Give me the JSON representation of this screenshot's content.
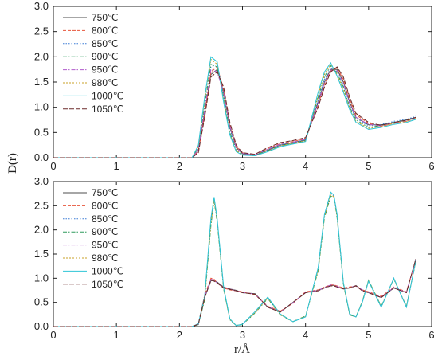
{
  "ylabel": "D(r)",
  "xlabel": "r/Å",
  "colors": [
    "#4d4d4d",
    "#e8543a",
    "#3a7bd5",
    "#2e9a5c",
    "#b15ccc",
    "#c9a227",
    "#2ec4d6",
    "#6b2a2a"
  ],
  "dashes": [
    "",
    "4,2",
    "1.5,2",
    "5,2,1.5,2",
    "5,2,1.5,2",
    "2,2",
    "",
    "6,2"
  ],
  "chart_data": [
    {
      "type": "line",
      "panel": "top",
      "xlim": [
        0,
        6
      ],
      "ylim": [
        0,
        3
      ],
      "xticks": [
        "0",
        "1",
        "2",
        "3",
        "4",
        "5",
        "6"
      ],
      "yticks": [
        "0.0",
        "0.5",
        "1.0",
        "1.5",
        "2.0",
        "2.5",
        "3.0"
      ],
      "legend": "top-left",
      "x": [
        0.0,
        2.2,
        2.3,
        2.4,
        2.5,
        2.6,
        2.7,
        2.8,
        2.9,
        3.0,
        3.2,
        3.4,
        3.6,
        3.8,
        4.0,
        4.2,
        4.3,
        4.4,
        4.5,
        4.6,
        4.7,
        4.8,
        5.0,
        5.2,
        5.4,
        5.6,
        5.75
      ],
      "series": [
        {
          "name": "750℃",
          "values": [
            0,
            0,
            0.15,
            0.9,
            1.65,
            1.75,
            1.3,
            0.6,
            0.2,
            0.08,
            0.05,
            0.15,
            0.25,
            0.3,
            0.35,
            1.1,
            1.5,
            1.75,
            1.75,
            1.5,
            1.1,
            0.8,
            0.65,
            0.65,
            0.7,
            0.75,
            0.8
          ]
        },
        {
          "name": "800℃",
          "values": [
            0,
            0,
            0.12,
            0.85,
            1.7,
            1.8,
            1.35,
            0.65,
            0.22,
            0.1,
            0.06,
            0.18,
            0.28,
            0.32,
            0.38,
            1.05,
            1.45,
            1.72,
            1.78,
            1.55,
            1.15,
            0.85,
            0.68,
            0.62,
            0.68,
            0.72,
            0.78
          ]
        },
        {
          "name": "850℃",
          "values": [
            0,
            0,
            0.18,
            1.0,
            1.8,
            1.85,
            1.25,
            0.55,
            0.18,
            0.07,
            0.05,
            0.16,
            0.26,
            0.3,
            0.36,
            1.15,
            1.55,
            1.78,
            1.7,
            1.45,
            1.05,
            0.78,
            0.63,
            0.66,
            0.72,
            0.76,
            0.82
          ]
        },
        {
          "name": "900℃",
          "values": [
            0,
            0,
            0.2,
            1.05,
            1.85,
            1.8,
            1.2,
            0.5,
            0.15,
            0.06,
            0.05,
            0.14,
            0.24,
            0.28,
            0.34,
            1.2,
            1.6,
            1.82,
            1.68,
            1.4,
            1.0,
            0.75,
            0.6,
            0.64,
            0.7,
            0.74,
            0.8
          ]
        },
        {
          "name": "950℃",
          "values": [
            0,
            0,
            0.16,
            0.95,
            1.75,
            1.7,
            1.28,
            0.62,
            0.2,
            0.09,
            0.06,
            0.17,
            0.27,
            0.31,
            0.37,
            1.08,
            1.48,
            1.74,
            1.72,
            1.48,
            1.08,
            0.8,
            0.66,
            0.63,
            0.69,
            0.73,
            0.79
          ]
        },
        {
          "name": "980℃",
          "values": [
            0,
            0,
            0.22,
            1.15,
            1.95,
            1.85,
            1.15,
            0.48,
            0.14,
            0.06,
            0.04,
            0.13,
            0.23,
            0.29,
            0.33,
            1.25,
            1.65,
            1.85,
            1.65,
            1.35,
            0.98,
            0.72,
            0.58,
            0.62,
            0.68,
            0.72,
            0.78
          ]
        },
        {
          "name": "1000℃",
          "values": [
            0,
            0,
            0.25,
            1.2,
            2.0,
            1.9,
            1.1,
            0.45,
            0.12,
            0.05,
            0.04,
            0.12,
            0.22,
            0.27,
            0.32,
            1.3,
            1.7,
            1.88,
            1.62,
            1.3,
            0.95,
            0.7,
            0.56,
            0.6,
            0.66,
            0.7,
            0.76
          ]
        },
        {
          "name": "1050℃",
          "values": [
            0,
            0,
            0.1,
            0.8,
            1.6,
            1.7,
            1.4,
            0.7,
            0.25,
            0.1,
            0.07,
            0.2,
            0.3,
            0.34,
            0.4,
            1.0,
            1.4,
            1.7,
            1.8,
            1.6,
            1.2,
            0.88,
            0.7,
            0.64,
            0.7,
            0.74,
            0.8
          ]
        }
      ]
    },
    {
      "type": "line",
      "panel": "bottom",
      "xlim": [
        0,
        6
      ],
      "ylim": [
        0,
        3
      ],
      "xticks": [
        "0",
        "1",
        "2",
        "3",
        "4",
        "5",
        "6"
      ],
      "yticks": [
        "0.0",
        "0.5",
        "1.0",
        "1.5",
        "2.0",
        "2.5",
        "3.0"
      ],
      "legend": "top-left",
      "x": [
        0.0,
        2.2,
        2.3,
        2.4,
        2.5,
        2.55,
        2.6,
        2.7,
        2.8,
        2.9,
        3.0,
        3.2,
        3.4,
        3.6,
        3.8,
        4.0,
        4.2,
        4.3,
        4.4,
        4.45,
        4.5,
        4.6,
        4.7,
        4.8,
        4.9,
        5.0,
        5.2,
        5.4,
        5.6,
        5.75
      ],
      "series": [
        {
          "name": "750℃",
          "values": [
            0,
            0,
            0.05,
            0.6,
            0.95,
            0.95,
            0.92,
            0.82,
            0.78,
            0.75,
            0.7,
            0.68,
            0.4,
            0.3,
            0.5,
            0.7,
            0.75,
            0.8,
            0.85,
            0.85,
            0.82,
            0.78,
            0.8,
            0.85,
            0.75,
            0.7,
            0.6,
            0.8,
            0.7,
            1.4
          ]
        },
        {
          "name": "800℃",
          "values": [
            0,
            0,
            0.06,
            0.65,
            1.0,
            0.98,
            0.9,
            0.8,
            0.76,
            0.74,
            0.72,
            0.66,
            0.42,
            0.32,
            0.48,
            0.72,
            0.76,
            0.82,
            0.86,
            0.86,
            0.84,
            0.8,
            0.82,
            0.84,
            0.76,
            0.72,
            0.62,
            0.82,
            0.72,
            1.38
          ]
        },
        {
          "name": "850℃",
          "values": [
            0,
            0,
            0.05,
            0.6,
            2.2,
            2.65,
            2.2,
            0.8,
            0.15,
            0.02,
            0.05,
            0.3,
            0.6,
            0.25,
            0.1,
            0.2,
            1.2,
            2.3,
            2.75,
            2.7,
            2.3,
            0.9,
            0.25,
            0.2,
            0.5,
            0.95,
            0.4,
            1.0,
            0.4,
            1.35
          ]
        },
        {
          "name": "900℃",
          "values": [
            0,
            0,
            0.04,
            0.55,
            2.1,
            2.6,
            2.15,
            0.78,
            0.14,
            0.02,
            0.04,
            0.28,
            0.58,
            0.24,
            0.1,
            0.22,
            1.15,
            2.25,
            2.7,
            2.68,
            2.25,
            0.88,
            0.24,
            0.2,
            0.52,
            0.96,
            0.42,
            0.98,
            0.42,
            1.36
          ]
        },
        {
          "name": "950℃",
          "values": [
            0,
            0,
            0.05,
            0.62,
            0.98,
            0.96,
            0.9,
            0.82,
            0.78,
            0.74,
            0.71,
            0.67,
            0.41,
            0.31,
            0.49,
            0.71,
            0.75,
            0.81,
            0.86,
            0.86,
            0.83,
            0.79,
            0.81,
            0.84,
            0.76,
            0.71,
            0.61,
            0.81,
            0.71,
            1.39
          ]
        },
        {
          "name": "980℃",
          "values": [
            0,
            0,
            0.05,
            0.58,
            2.15,
            2.62,
            2.18,
            0.8,
            0.15,
            0.02,
            0.05,
            0.29,
            0.59,
            0.25,
            0.1,
            0.21,
            1.18,
            2.28,
            2.72,
            2.69,
            2.28,
            0.89,
            0.25,
            0.2,
            0.51,
            0.95,
            0.41,
            0.99,
            0.41,
            1.36
          ]
        },
        {
          "name": "1000℃",
          "values": [
            0,
            0,
            0.06,
            0.63,
            2.25,
            2.68,
            2.22,
            0.82,
            0.16,
            0.02,
            0.05,
            0.31,
            0.61,
            0.26,
            0.1,
            0.2,
            1.22,
            2.32,
            2.78,
            2.72,
            2.32,
            0.91,
            0.26,
            0.2,
            0.5,
            0.94,
            0.4,
            1.0,
            0.4,
            1.37
          ]
        },
        {
          "name": "1050℃",
          "values": [
            0,
            0,
            0.05,
            0.6,
            0.96,
            0.94,
            0.9,
            0.8,
            0.77,
            0.74,
            0.7,
            0.67,
            0.4,
            0.3,
            0.5,
            0.7,
            0.74,
            0.8,
            0.84,
            0.84,
            0.82,
            0.78,
            0.8,
            0.84,
            0.74,
            0.7,
            0.6,
            0.8,
            0.7,
            1.4
          ]
        }
      ]
    }
  ]
}
